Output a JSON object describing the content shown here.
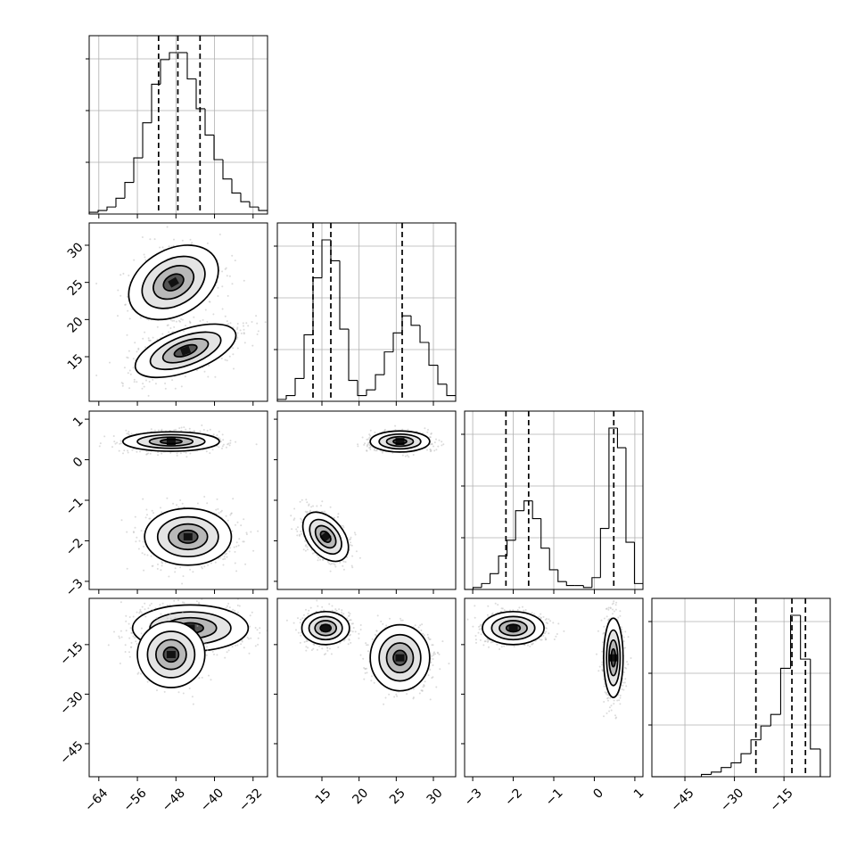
{
  "chart_data": {
    "type": "corner",
    "parameters": [
      {
        "range": [
          -66,
          -29
        ],
        "ticks": [
          -64,
          -56,
          -48,
          -40,
          -32
        ],
        "tick_labels": [
          "−64",
          "−56",
          "−48",
          "−40",
          "−32"
        ]
      },
      {
        "range": [
          9,
          33
        ],
        "ticks": [
          15,
          20,
          25,
          30
        ],
        "tick_labels": [
          "15",
          "20",
          "25",
          "30"
        ]
      },
      {
        "range": [
          -3.2,
          1.2
        ],
        "ticks": [
          -3,
          -2,
          -1,
          0,
          1
        ],
        "tick_labels": [
          "−3",
          "−2",
          "−1",
          "0",
          "1"
        ]
      },
      {
        "range": [
          -55,
          -1
        ],
        "ticks": [
          -45,
          -30,
          -15
        ],
        "tick_labels": [
          "−45",
          "−30",
          "−15"
        ]
      }
    ],
    "histograms": [
      {
        "bin_start": -66,
        "bin_end": -29,
        "counts": [
          1,
          2,
          4,
          9,
          18,
          32,
          52,
          74,
          88,
          92,
          92,
          77,
          60,
          45,
          31,
          20,
          12,
          7,
          4,
          2
        ],
        "quantiles": [
          -51.6,
          -47.6,
          -43.0
        ]
      },
      {
        "bin_start": 9,
        "bin_end": 33,
        "counts": [
          1,
          3,
          12,
          35,
          65,
          85,
          74,
          38,
          11,
          3,
          6,
          14,
          26,
          36,
          45,
          40,
          31,
          19,
          9,
          3
        ],
        "quantiles": [
          13.8,
          16.2,
          25.8
        ]
      },
      {
        "bin_start": -3.2,
        "bin_end": 1.2,
        "counts": [
          0,
          1,
          3,
          8,
          17,
          25,
          40,
          45,
          36,
          21,
          10,
          4,
          2,
          2,
          1,
          6,
          31,
          82,
          72,
          24,
          3
        ],
        "quantiles": [
          -2.18,
          -1.62,
          0.48
        ]
      },
      {
        "bin_start": -55,
        "bin_end": -1,
        "counts": [
          0,
          0,
          0,
          0,
          0,
          1,
          2,
          4,
          6,
          10,
          16,
          22,
          27,
          47,
          70,
          51,
          12,
          0
        ],
        "quantiles": [
          -23.5,
          -12.6,
          -8.5
        ]
      }
    ],
    "panels": [
      {
        "x": 0,
        "y": 1,
        "clusters": [
          {
            "center": [
              -46,
              15.8
            ],
            "spread": [
              5.5,
              1.4
            ],
            "angle": -20,
            "n": 900
          },
          {
            "center": [
              -48.5,
              25
            ],
            "spread": [
              5,
              2.2
            ],
            "angle": -30,
            "n": 600
          }
        ]
      },
      {
        "x": 0,
        "y": 2,
        "clusters": [
          {
            "center": [
              -49,
              0.45
            ],
            "spread": [
              5,
              0.12
            ],
            "angle": 0,
            "n": 800
          },
          {
            "center": [
              -45.5,
              -1.9
            ],
            "spread": [
              4.5,
              0.35
            ],
            "angle": 0,
            "n": 800
          }
        ]
      },
      {
        "x": 0,
        "y": 3,
        "clusters": [
          {
            "center": [
              -45,
              -10
            ],
            "spread": [
              6,
              3.5
            ],
            "angle": 0,
            "n": 900
          },
          {
            "center": [
              -49,
              -18
            ],
            "spread": [
              3.5,
              5
            ],
            "angle": 0,
            "n": 500
          }
        ]
      },
      {
        "x": 1,
        "y": 2,
        "clusters": [
          {
            "center": [
              25.5,
              0.45
            ],
            "spread": [
              2,
              0.13
            ],
            "angle": 0,
            "n": 700
          },
          {
            "center": [
              15.5,
              -1.9
            ],
            "spread": [
              1.2,
              0.35
            ],
            "angle": -40,
            "n": 700
          }
        ]
      },
      {
        "x": 1,
        "y": 3,
        "clusters": [
          {
            "center": [
              15.5,
              -10
            ],
            "spread": [
              1.6,
              2.5
            ],
            "angle": 0,
            "n": 700
          },
          {
            "center": [
              25.5,
              -19
            ],
            "spread": [
              2,
              5
            ],
            "angle": 0,
            "n": 700
          }
        ]
      },
      {
        "x": 2,
        "y": 3,
        "clusters": [
          {
            "center": [
              -2.0,
              -10
            ],
            "spread": [
              0.38,
              2.5
            ],
            "angle": 0,
            "n": 700
          },
          {
            "center": [
              0.47,
              -19
            ],
            "spread": [
              0.12,
              6
            ],
            "angle": 0,
            "n": 700
          }
        ]
      }
    ]
  }
}
